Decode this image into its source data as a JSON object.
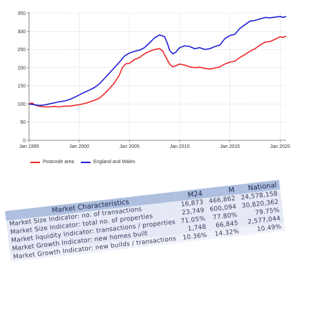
{
  "chart_data": {
    "type": "line",
    "x_ticks": [
      "Jan 1995",
      "Jan 2000",
      "Jan 2005",
      "Jan 2010",
      "Jan 2015",
      "Jan 2020"
    ],
    "ylim": [
      0,
      350
    ],
    "y_ticks": [
      0,
      50,
      100,
      150,
      200,
      250,
      300,
      350
    ],
    "xlim": [
      1995.0,
      2020.6
    ],
    "grid": true,
    "legend_position": "bottom-left",
    "series": [
      {
        "name": "Postcode area",
        "color": "#ee2222",
        "points": [
          [
            1995.0,
            100
          ],
          [
            1995.3,
            103
          ],
          [
            1995.6,
            97
          ],
          [
            1996.0,
            94
          ],
          [
            1996.5,
            92
          ],
          [
            1997.0,
            92
          ],
          [
            1997.5,
            93
          ],
          [
            1998.0,
            92
          ],
          [
            1998.5,
            94
          ],
          [
            1999.0,
            94
          ],
          [
            1999.5,
            96
          ],
          [
            2000.0,
            98
          ],
          [
            2000.5,
            101
          ],
          [
            2001.0,
            105
          ],
          [
            2001.5,
            110
          ],
          [
            2002.0,
            116
          ],
          [
            2002.5,
            128
          ],
          [
            2003.0,
            142
          ],
          [
            2003.5,
            158
          ],
          [
            2004.0,
            180
          ],
          [
            2004.3,
            200
          ],
          [
            2004.6,
            210
          ],
          [
            2005.0,
            212
          ],
          [
            2005.5,
            222
          ],
          [
            2006.0,
            228
          ],
          [
            2006.5,
            238
          ],
          [
            2007.0,
            245
          ],
          [
            2007.5,
            250
          ],
          [
            2008.0,
            252
          ],
          [
            2008.3,
            246
          ],
          [
            2008.7,
            225
          ],
          [
            2009.0,
            210
          ],
          [
            2009.3,
            202
          ],
          [
            2009.6,
            205
          ],
          [
            2010.0,
            210
          ],
          [
            2010.5,
            207
          ],
          [
            2011.0,
            202
          ],
          [
            2011.5,
            200
          ],
          [
            2012.0,
            201
          ],
          [
            2012.5,
            198
          ],
          [
            2013.0,
            196
          ],
          [
            2013.5,
            199
          ],
          [
            2014.0,
            202
          ],
          [
            2014.5,
            210
          ],
          [
            2015.0,
            215
          ],
          [
            2015.5,
            218
          ],
          [
            2016.0,
            228
          ],
          [
            2016.5,
            236
          ],
          [
            2017.0,
            245
          ],
          [
            2017.5,
            252
          ],
          [
            2018.0,
            262
          ],
          [
            2018.5,
            270
          ],
          [
            2019.0,
            272
          ],
          [
            2019.5,
            278
          ],
          [
            2020.0,
            285
          ],
          [
            2020.3,
            283
          ],
          [
            2020.6,
            287
          ]
        ]
      },
      {
        "name": "England and Wales",
        "color": "#1a1ad6",
        "points": [
          [
            1995.0,
            100
          ],
          [
            1995.5,
            98
          ],
          [
            1996.0,
            96
          ],
          [
            1996.5,
            97
          ],
          [
            1997.0,
            100
          ],
          [
            1997.5,
            103
          ],
          [
            1998.0,
            106
          ],
          [
            1998.5,
            108
          ],
          [
            1999.0,
            112
          ],
          [
            1999.5,
            118
          ],
          [
            2000.0,
            125
          ],
          [
            2000.5,
            132
          ],
          [
            2001.0,
            138
          ],
          [
            2001.5,
            145
          ],
          [
            2002.0,
            155
          ],
          [
            2002.5,
            170
          ],
          [
            2003.0,
            185
          ],
          [
            2003.5,
            200
          ],
          [
            2004.0,
            215
          ],
          [
            2004.5,
            232
          ],
          [
            2005.0,
            240
          ],
          [
            2005.5,
            245
          ],
          [
            2006.0,
            248
          ],
          [
            2006.5,
            255
          ],
          [
            2007.0,
            268
          ],
          [
            2007.5,
            282
          ],
          [
            2008.0,
            290
          ],
          [
            2008.5,
            285
          ],
          [
            2008.8,
            265
          ],
          [
            2009.0,
            248
          ],
          [
            2009.3,
            238
          ],
          [
            2009.6,
            242
          ],
          [
            2010.0,
            255
          ],
          [
            2010.5,
            260
          ],
          [
            2011.0,
            258
          ],
          [
            2011.5,
            252
          ],
          [
            2012.0,
            255
          ],
          [
            2012.5,
            250
          ],
          [
            2013.0,
            252
          ],
          [
            2013.5,
            258
          ],
          [
            2014.0,
            262
          ],
          [
            2014.5,
            280
          ],
          [
            2015.0,
            288
          ],
          [
            2015.5,
            292
          ],
          [
            2016.0,
            308
          ],
          [
            2016.5,
            318
          ],
          [
            2017.0,
            328
          ],
          [
            2017.5,
            330
          ],
          [
            2018.0,
            334
          ],
          [
            2018.5,
            338
          ],
          [
            2019.0,
            337
          ],
          [
            2019.5,
            339
          ],
          [
            2020.0,
            341
          ],
          [
            2020.3,
            338
          ],
          [
            2020.6,
            341
          ]
        ]
      }
    ]
  },
  "table": {
    "headers": [
      "Market Characteristics",
      "M24",
      "M",
      "National"
    ],
    "rows": [
      [
        "Market Size Indicator: no. of transactions",
        "16,873",
        "466,862",
        "24,578,158"
      ],
      [
        "Market Size Indicator: total no. of properties",
        "23,749",
        "600,094",
        "30,820,362"
      ],
      [
        "Market liquidity Indicator: transactions / properties",
        "71.05%",
        "77.80%",
        "79.75%"
      ],
      [
        "Market Growth Indicator: new homes built",
        "1,748",
        "66,845",
        "2,577,044"
      ],
      [
        "Market Growth Indicator: new builds / transactions",
        "10.36%",
        "14.32%",
        "10.49%"
      ]
    ]
  }
}
